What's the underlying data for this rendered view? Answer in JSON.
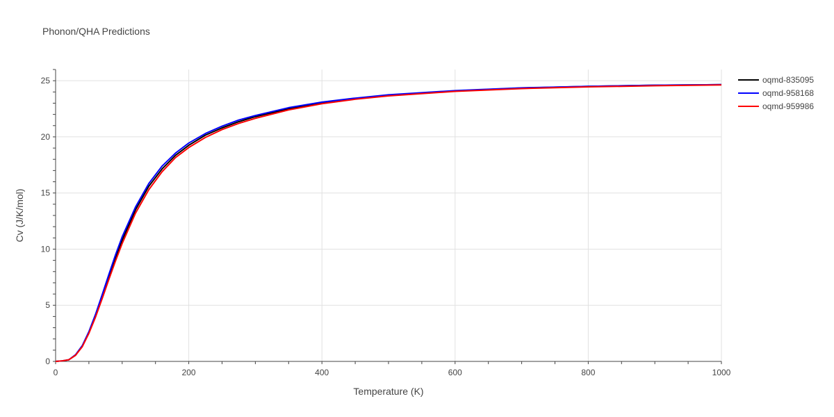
{
  "chart_data": {
    "type": "line",
    "title": "Phonon/QHA Predictions",
    "xlabel": "Temperature (K)",
    "ylabel": "Cv (J/K/mol)",
    "xlim": [
      0,
      1000
    ],
    "ylim": [
      0,
      26
    ],
    "x_ticks": [
      0,
      200,
      400,
      600,
      800,
      1000
    ],
    "y_ticks": [
      0,
      5,
      10,
      15,
      20,
      25
    ],
    "grid": true,
    "legend_position": "right",
    "series": [
      {
        "name": "oqmd-835095",
        "color": "#000000",
        "x": [
          0,
          10,
          20,
          30,
          40,
          50,
          60,
          70,
          80,
          90,
          100,
          120,
          140,
          160,
          180,
          200,
          225,
          250,
          275,
          300,
          350,
          400,
          450,
          500,
          600,
          700,
          800,
          900,
          1000
        ],
        "y": [
          0,
          0.05,
          0.15,
          0.55,
          1.35,
          2.55,
          4.05,
          5.75,
          7.5,
          9.2,
          10.8,
          13.5,
          15.6,
          17.15,
          18.35,
          19.25,
          20.15,
          20.8,
          21.35,
          21.8,
          22.5,
          23.0,
          23.4,
          23.7,
          24.1,
          24.35,
          24.5,
          24.6,
          24.65
        ]
      },
      {
        "name": "oqmd-958168",
        "color": "#0000ff",
        "x": [
          0,
          10,
          20,
          30,
          40,
          50,
          60,
          70,
          80,
          90,
          100,
          120,
          140,
          160,
          180,
          200,
          225,
          250,
          275,
          300,
          350,
          400,
          450,
          500,
          600,
          700,
          800,
          900,
          1000
        ],
        "y": [
          0,
          0.05,
          0.15,
          0.6,
          1.4,
          2.65,
          4.2,
          5.95,
          7.75,
          9.5,
          11.1,
          13.75,
          15.85,
          17.4,
          18.55,
          19.45,
          20.3,
          20.95,
          21.5,
          21.9,
          22.6,
          23.1,
          23.45,
          23.75,
          24.12,
          24.37,
          24.5,
          24.6,
          24.65
        ]
      },
      {
        "name": "oqmd-959986",
        "color": "#ff0000",
        "x": [
          0,
          10,
          20,
          30,
          40,
          50,
          60,
          70,
          80,
          90,
          100,
          120,
          140,
          160,
          180,
          200,
          225,
          250,
          275,
          300,
          350,
          400,
          450,
          500,
          600,
          700,
          800,
          900,
          1000
        ],
        "y": [
          0,
          0.05,
          0.15,
          0.55,
          1.3,
          2.5,
          3.95,
          5.6,
          7.3,
          8.95,
          10.5,
          13.2,
          15.3,
          16.9,
          18.15,
          19.05,
          19.95,
          20.65,
          21.2,
          21.65,
          22.4,
          22.95,
          23.35,
          23.65,
          24.05,
          24.3,
          24.45,
          24.55,
          24.62
        ]
      }
    ]
  }
}
